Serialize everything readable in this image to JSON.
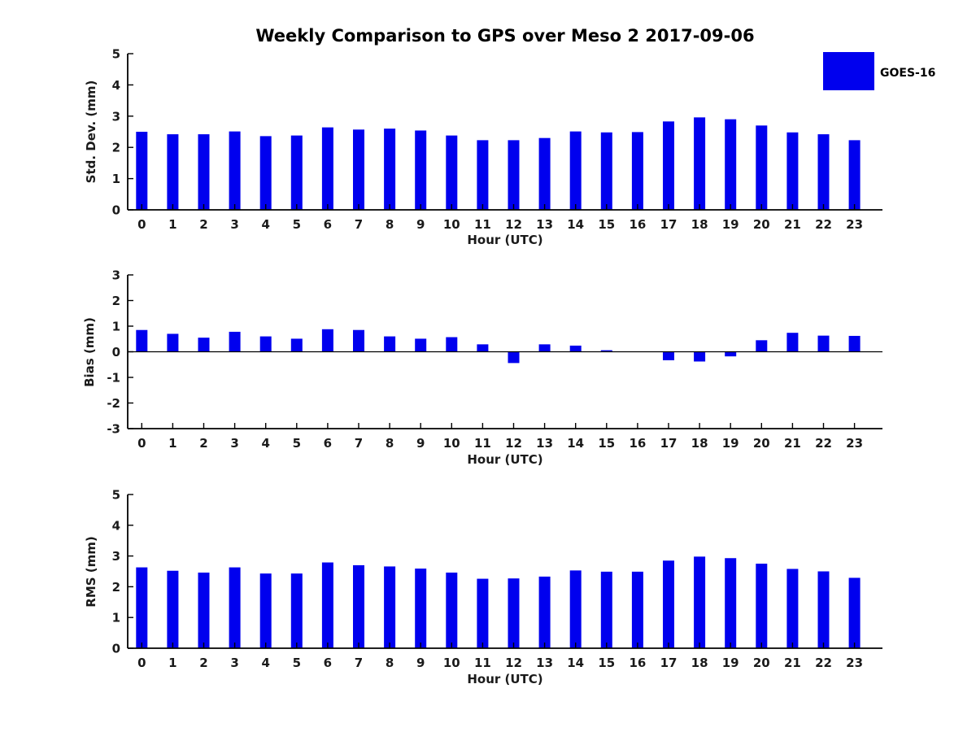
{
  "title": "Weekly Comparison to GPS over Meso 2 2017-09-06",
  "legend": {
    "label": "GOES-16",
    "swatch_color": "#0000EE"
  },
  "colors": {
    "bar": "#0000EE",
    "axis": "#000000",
    "text": "#1a1a1a"
  },
  "chart_data": [
    {
      "type": "bar",
      "title": "",
      "xlabel": "Hour (UTC)",
      "ylabel": "Std. Dev. (mm)",
      "categories": [
        "0",
        "1",
        "2",
        "3",
        "4",
        "5",
        "6",
        "7",
        "8",
        "9",
        "10",
        "11",
        "12",
        "13",
        "14",
        "15",
        "16",
        "17",
        "18",
        "19",
        "20",
        "21",
        "22",
        "23"
      ],
      "values": [
        2.5,
        2.42,
        2.42,
        2.51,
        2.36,
        2.38,
        2.64,
        2.57,
        2.6,
        2.54,
        2.38,
        2.23,
        2.23,
        2.3,
        2.51,
        2.48,
        2.49,
        2.83,
        2.96,
        2.9,
        2.7,
        2.48,
        2.42,
        2.23
      ],
      "ylim": [
        0,
        5
      ],
      "yticks": [
        0,
        1,
        2,
        3,
        4,
        5
      ],
      "grid": false,
      "legend_entry": "GOES-16",
      "legend_position": "upper right"
    },
    {
      "type": "bar",
      "title": "",
      "xlabel": "Hour (UTC)",
      "ylabel": "Bias (mm)",
      "categories": [
        "0",
        "1",
        "2",
        "3",
        "4",
        "5",
        "6",
        "7",
        "8",
        "9",
        "10",
        "11",
        "12",
        "13",
        "14",
        "15",
        "16",
        "17",
        "18",
        "19",
        "20",
        "21",
        "22",
        "23"
      ],
      "values": [
        0.85,
        0.7,
        0.55,
        0.78,
        0.6,
        0.51,
        0.88,
        0.85,
        0.6,
        0.51,
        0.57,
        0.29,
        -0.44,
        0.29,
        0.24,
        0.06,
        0.0,
        -0.33,
        -0.38,
        -0.18,
        0.45,
        0.74,
        0.63,
        0.62
      ],
      "ylim": [
        -3,
        3
      ],
      "yticks": [
        -3,
        -2,
        -1,
        0,
        1,
        2,
        3
      ],
      "grid": false,
      "legend_entry": "GOES-16",
      "legend_position": "none"
    },
    {
      "type": "bar",
      "title": "",
      "xlabel": "Hour (UTC)",
      "ylabel": "RMS (mm)",
      "categories": [
        "0",
        "1",
        "2",
        "3",
        "4",
        "5",
        "6",
        "7",
        "8",
        "9",
        "10",
        "11",
        "12",
        "13",
        "14",
        "15",
        "16",
        "17",
        "18",
        "19",
        "20",
        "21",
        "22",
        "23"
      ],
      "values": [
        2.63,
        2.52,
        2.46,
        2.63,
        2.43,
        2.43,
        2.79,
        2.7,
        2.66,
        2.59,
        2.46,
        2.26,
        2.27,
        2.33,
        2.53,
        2.49,
        2.49,
        2.85,
        2.98,
        2.93,
        2.75,
        2.58,
        2.5,
        2.29
      ],
      "ylim": [
        0,
        5
      ],
      "yticks": [
        0,
        1,
        2,
        3,
        4,
        5
      ],
      "grid": false,
      "legend_entry": "GOES-16",
      "legend_position": "none"
    }
  ]
}
